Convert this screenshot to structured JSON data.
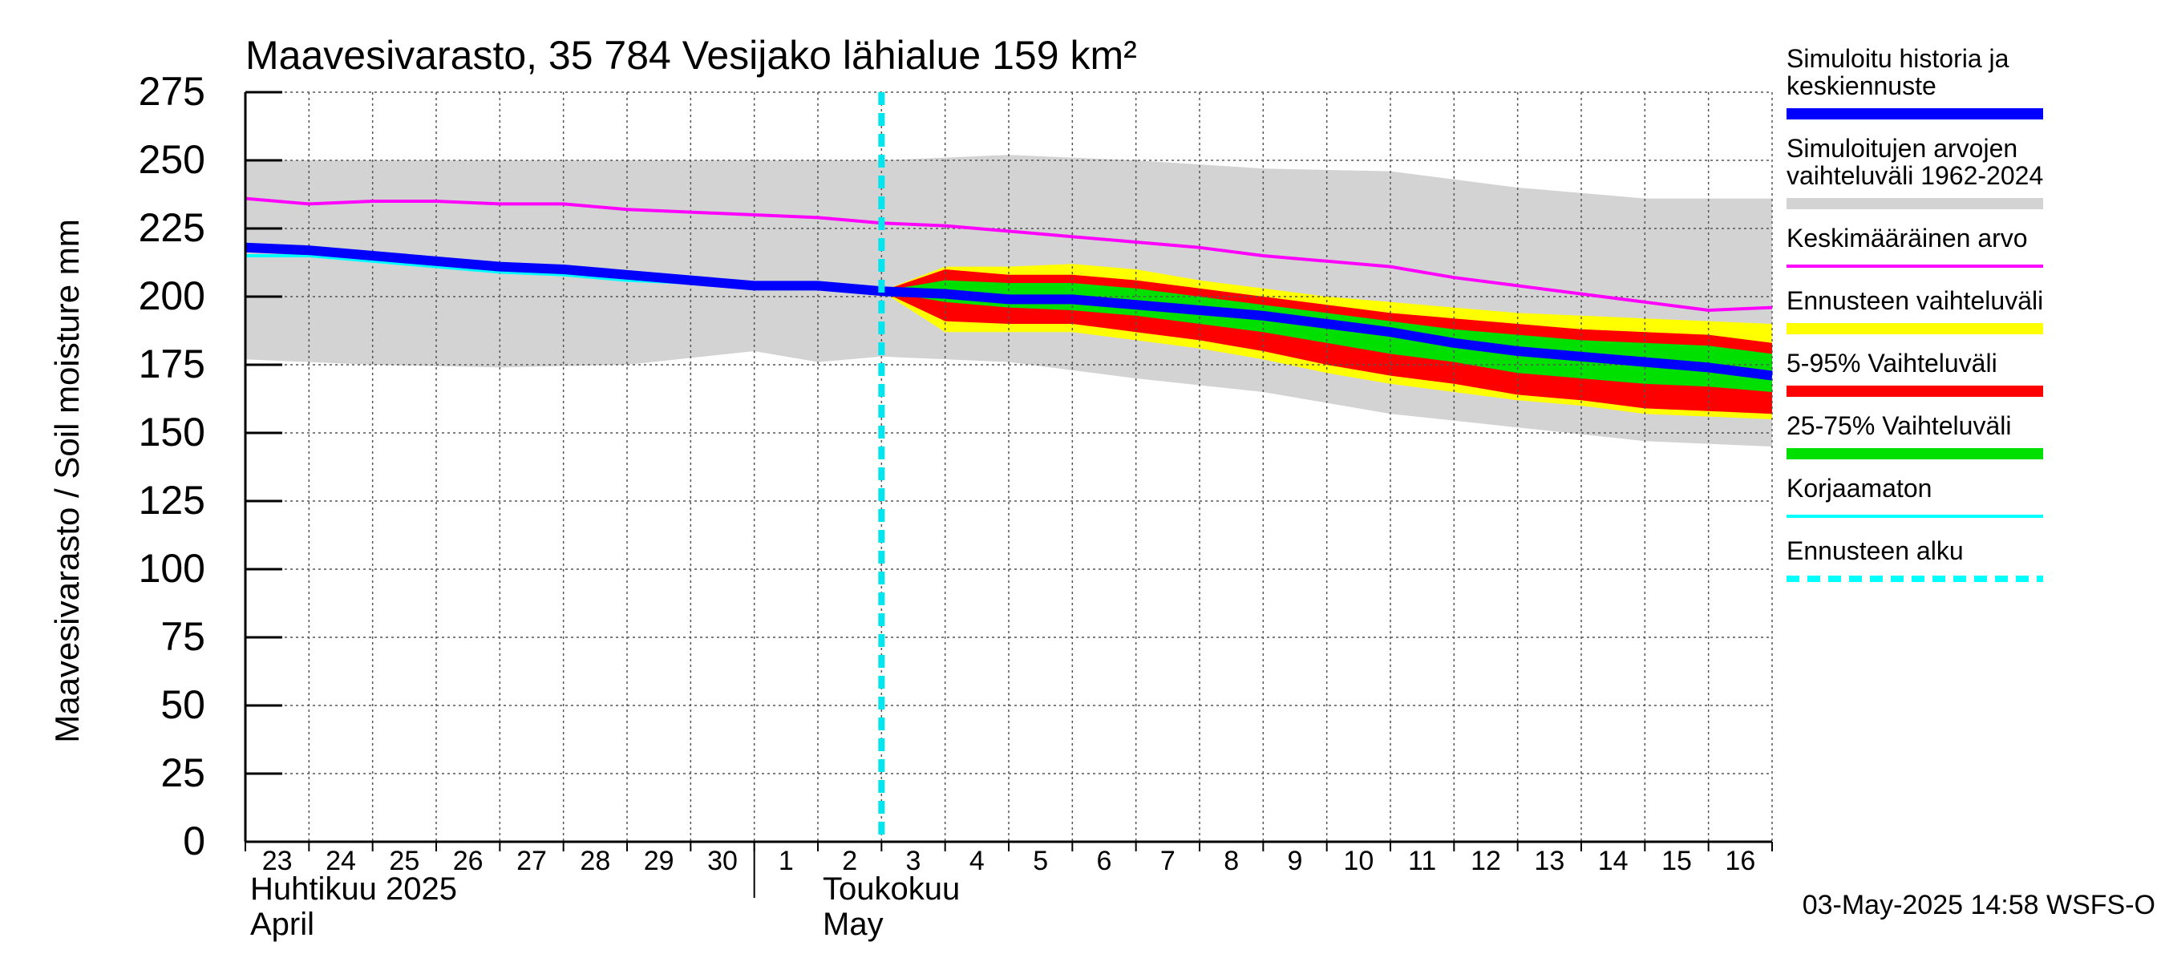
{
  "chart_data": {
    "type": "area",
    "title": "Maavesivarasto, 35 784 Vesijako lähialue 159 km²",
    "ylabel": "Maavesivarasto / Soil moisture   mm",
    "ylim": [
      0,
      275
    ],
    "xlim": [
      0,
      24
    ],
    "grid": true,
    "y_ticks": [
      0,
      25,
      50,
      75,
      100,
      125,
      150,
      175,
      200,
      225,
      250,
      275
    ],
    "x_tick_labels": [
      {
        "x": 0,
        "label": "23"
      },
      {
        "x": 1,
        "label": "24"
      },
      {
        "x": 2,
        "label": "25"
      },
      {
        "x": 3,
        "label": "26"
      },
      {
        "x": 4,
        "label": "27"
      },
      {
        "x": 5,
        "label": "28"
      },
      {
        "x": 6,
        "label": "29"
      },
      {
        "x": 7,
        "label": "30"
      },
      {
        "x": 8,
        "label": "1"
      },
      {
        "x": 9,
        "label": "2"
      },
      {
        "x": 10,
        "label": "3"
      },
      {
        "x": 11,
        "label": "4"
      },
      {
        "x": 12,
        "label": "5"
      },
      {
        "x": 13,
        "label": "6"
      },
      {
        "x": 14,
        "label": "7"
      },
      {
        "x": 15,
        "label": "8"
      },
      {
        "x": 16,
        "label": "9"
      },
      {
        "x": 17,
        "label": "10"
      },
      {
        "x": 18,
        "label": "11"
      },
      {
        "x": 19,
        "label": "12"
      },
      {
        "x": 20,
        "label": "13"
      },
      {
        "x": 21,
        "label": "14"
      },
      {
        "x": 22,
        "label": "15"
      },
      {
        "x": 23,
        "label": "16"
      }
    ],
    "month_labels": [
      {
        "x": 0,
        "fi": "Huhtikuu  2025",
        "en": "April"
      },
      {
        "x": 9,
        "fi": "Toukokuu",
        "en": "May"
      }
    ],
    "month_divider_x": 8,
    "forecast_start_x": 10,
    "series": [
      {
        "name": "Simuloitujen arvojen vaihteluväli 1962-2024",
        "kind": "band",
        "color": "#d3d3d3",
        "x": [
          0,
          2,
          4,
          6,
          8,
          9,
          10,
          12,
          14,
          16,
          18,
          20,
          22,
          24
        ],
        "lower": [
          177,
          175,
          174,
          175,
          180,
          176,
          178,
          176,
          170,
          165,
          157,
          152,
          147,
          145
        ],
        "upper": [
          250,
          250,
          250,
          250,
          250,
          250,
          250,
          252,
          250,
          247,
          246,
          240,
          236,
          236
        ]
      },
      {
        "name": "Ennusteen vaihteluväli",
        "kind": "band",
        "color": "#ffff00",
        "x": [
          10,
          11,
          12,
          13,
          14,
          15,
          16,
          17,
          18,
          19,
          20,
          21,
          22,
          23,
          24
        ],
        "lower": [
          202,
          187,
          187,
          187,
          184,
          181,
          177,
          172,
          168,
          165,
          162,
          160,
          157,
          156,
          155
        ],
        "upper": [
          202,
          211,
          211,
          212,
          210,
          206,
          203,
          200,
          198,
          196,
          194,
          193,
          192,
          191,
          190
        ]
      },
      {
        "name": "5-95% Vaihteluväli",
        "kind": "band",
        "color": "#ff0000",
        "x": [
          10,
          11,
          12,
          13,
          14,
          15,
          16,
          17,
          18,
          19,
          20,
          21,
          22,
          23,
          24
        ],
        "lower": [
          202,
          191,
          190,
          190,
          187,
          184,
          180,
          175,
          171,
          168,
          164,
          162,
          159,
          158,
          157
        ],
        "upper": [
          202,
          210,
          208,
          208,
          206,
          203,
          200,
          197,
          194,
          192,
          190,
          188,
          187,
          186,
          183
        ]
      },
      {
        "name": "25-75% Vaihteluväli",
        "kind": "band",
        "color": "#00e000",
        "x": [
          10,
          11,
          12,
          13,
          14,
          15,
          16,
          17,
          18,
          19,
          20,
          21,
          22,
          23,
          24
        ],
        "lower": [
          202,
          198,
          196,
          195,
          193,
          190,
          187,
          183,
          179,
          176,
          172,
          170,
          168,
          167,
          165
        ],
        "upper": [
          202,
          206,
          205,
          205,
          203,
          200,
          197,
          194,
          191,
          188,
          186,
          184,
          183,
          182,
          179
        ]
      },
      {
        "name": "Keskimääräinen arvo",
        "kind": "line",
        "color": "#ff00ff",
        "x": [
          0,
          1,
          2,
          3,
          4,
          5,
          6,
          7,
          8,
          9,
          10,
          11,
          12,
          13,
          14,
          15,
          16,
          17,
          18,
          19,
          20,
          21,
          22,
          23,
          24
        ],
        "y": [
          236,
          234,
          235,
          235,
          234,
          234,
          232,
          231,
          230,
          229,
          227,
          226,
          224,
          222,
          220,
          218,
          215,
          213,
          211,
          207,
          204,
          201,
          198,
          195,
          196
        ]
      },
      {
        "name": "Korjaamaton",
        "kind": "line",
        "color": "#00ffff",
        "x": [
          0,
          1,
          2,
          3,
          4,
          5,
          6,
          7,
          8,
          9,
          10
        ],
        "y": [
          215,
          215,
          213,
          211,
          209,
          208,
          206,
          205,
          204,
          204,
          202
        ]
      },
      {
        "name": "Simuloitu historia ja keskiennuste",
        "kind": "line",
        "color": "#0000ff",
        "x": [
          0,
          1,
          2,
          3,
          4,
          5,
          6,
          7,
          8,
          9,
          10,
          11,
          12,
          13,
          14,
          15,
          16,
          17,
          18,
          19,
          20,
          21,
          22,
          23,
          24
        ],
        "y": [
          218,
          217,
          215,
          213,
          211,
          210,
          208,
          206,
          204,
          204,
          202,
          201,
          199,
          199,
          197,
          195,
          193,
          190,
          187,
          183,
          180,
          178,
          176,
          174,
          171
        ]
      }
    ],
    "legend": {
      "placement": "right",
      "entries": [
        {
          "lines": [
            "Simuloitu historia ja",
            "keskiennuste"
          ],
          "color": "#0000ff",
          "style": "thick"
        },
        {
          "lines": [
            "Simuloitujen arvojen",
            "vaihteluväli 1962-2024"
          ],
          "color": "#d3d3d3",
          "style": "thick"
        },
        {
          "lines": [
            "Keskimääräinen arvo"
          ],
          "color": "#ff00ff",
          "style": "thin"
        },
        {
          "lines": [
            "Ennusteen vaihteluväli"
          ],
          "color": "#ffff00",
          "style": "thick"
        },
        {
          "lines": [
            "5-95% Vaihteluväli"
          ],
          "color": "#ff0000",
          "style": "thick"
        },
        {
          "lines": [
            "25-75% Vaihteluväli"
          ],
          "color": "#00e000",
          "style": "thick"
        },
        {
          "lines": [
            "Korjaamaton"
          ],
          "color": "#00ffff",
          "style": "thin"
        },
        {
          "lines": [
            "Ennusteen alku"
          ],
          "color": "#00ffff",
          "style": "dashed"
        }
      ]
    },
    "footer": "03-May-2025 14:58 WSFS-O"
  }
}
